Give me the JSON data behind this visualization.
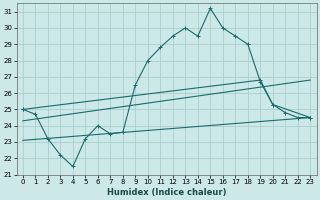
{
  "xlabel": "Humidex (Indice chaleur)",
  "xlim": [
    -0.5,
    23.5
  ],
  "ylim": [
    21,
    31.5
  ],
  "xticks": [
    0,
    1,
    2,
    3,
    4,
    5,
    6,
    7,
    8,
    9,
    10,
    11,
    12,
    13,
    14,
    15,
    16,
    17,
    18,
    19,
    20,
    21,
    22,
    23
  ],
  "yticks": [
    21,
    22,
    23,
    24,
    25,
    26,
    27,
    28,
    29,
    30,
    31
  ],
  "bg_color": "#cce8e8",
  "grid_color": "#aad0d0",
  "line_color": "#1a6b6b",
  "line1_x": [
    0,
    1,
    2,
    3,
    4,
    5,
    6,
    7,
    8,
    9,
    10,
    11,
    12,
    13,
    14,
    15,
    16,
    17,
    18,
    19,
    20,
    21,
    22,
    23
  ],
  "line1_y": [
    25.0,
    24.7,
    23.2,
    22.2,
    21.5,
    23.2,
    24.0,
    23.5,
    23.6,
    26.5,
    28.0,
    28.8,
    29.5,
    30.0,
    29.5,
    31.2,
    30.0,
    29.5,
    29.0,
    26.7,
    25.3,
    24.8,
    24.5,
    24.5
  ],
  "line2_x": [
    0,
    19,
    20,
    23
  ],
  "line2_y": [
    25.0,
    26.8,
    25.3,
    24.5
  ],
  "line3_x": [
    0,
    23
  ],
  "line3_y": [
    24.3,
    26.8
  ],
  "line4_x": [
    0,
    23
  ],
  "line4_y": [
    23.1,
    24.5
  ]
}
